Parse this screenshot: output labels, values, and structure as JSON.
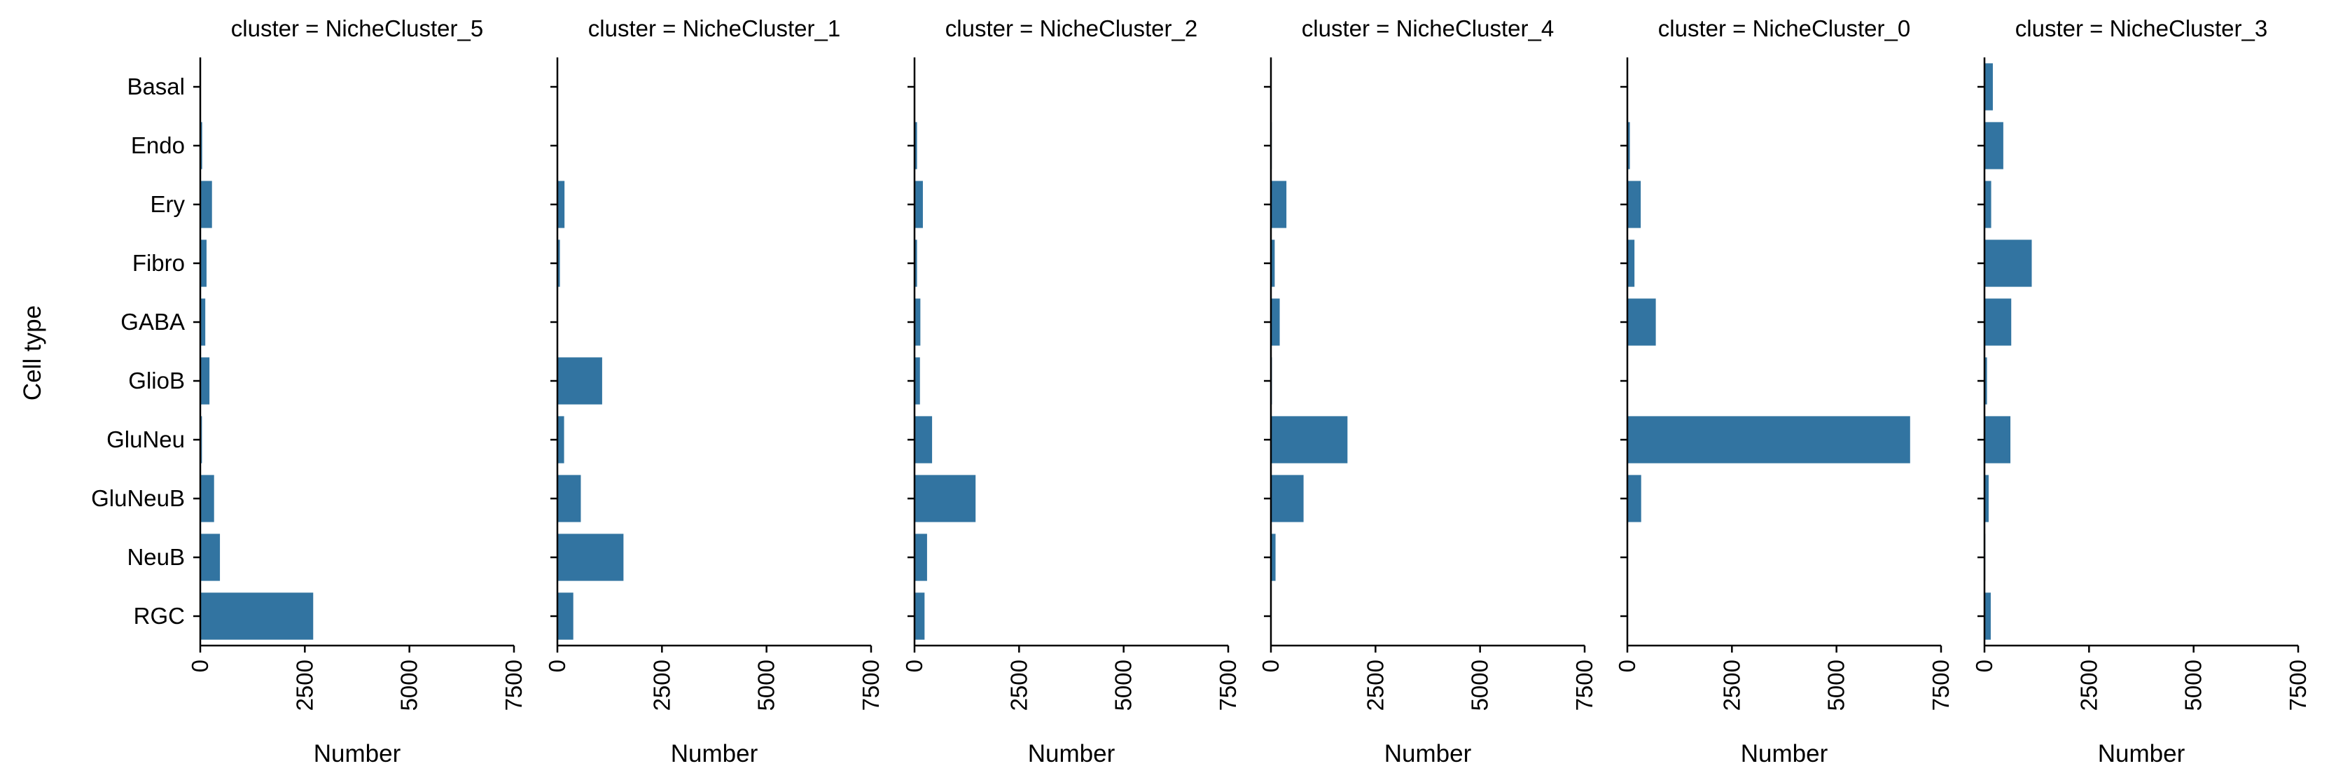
{
  "chart_data": {
    "type": "bar",
    "orientation": "horizontal",
    "bar_color": "#3274a1",
    "ylabel": "Cell type",
    "xlabel": "Number",
    "xlim": [
      0,
      7500
    ],
    "xticks": [
      0,
      2500,
      5000,
      7500
    ],
    "categories": [
      "Basal",
      "Endo",
      "Ery",
      "Fibro",
      "GABA",
      "GlioB",
      "GluNeu",
      "GluNeuB",
      "NeuB",
      "RGC"
    ],
    "panels": [
      {
        "title": "cluster = NicheCluster_5",
        "values": [
          10,
          45,
          280,
          150,
          120,
          220,
          40,
          330,
          470,
          2700
        ]
      },
      {
        "title": "cluster = NicheCluster_1",
        "values": [
          5,
          10,
          170,
          60,
          15,
          1070,
          160,
          560,
          1580,
          380
        ]
      },
      {
        "title": "cluster = NicheCluster_2",
        "values": [
          10,
          60,
          200,
          60,
          140,
          130,
          420,
          1460,
          300,
          240
        ]
      },
      {
        "title": "cluster = NicheCluster_4",
        "values": [
          10,
          20,
          370,
          90,
          210,
          25,
          1830,
          780,
          110,
          10
        ]
      },
      {
        "title": "cluster = NicheCluster_0",
        "values": [
          10,
          60,
          320,
          170,
          680,
          10,
          6760,
          330,
          10,
          10
        ]
      },
      {
        "title": "cluster = NicheCluster_3",
        "values": [
          200,
          450,
          160,
          1130,
          640,
          60,
          620,
          100,
          20,
          150
        ]
      }
    ]
  }
}
